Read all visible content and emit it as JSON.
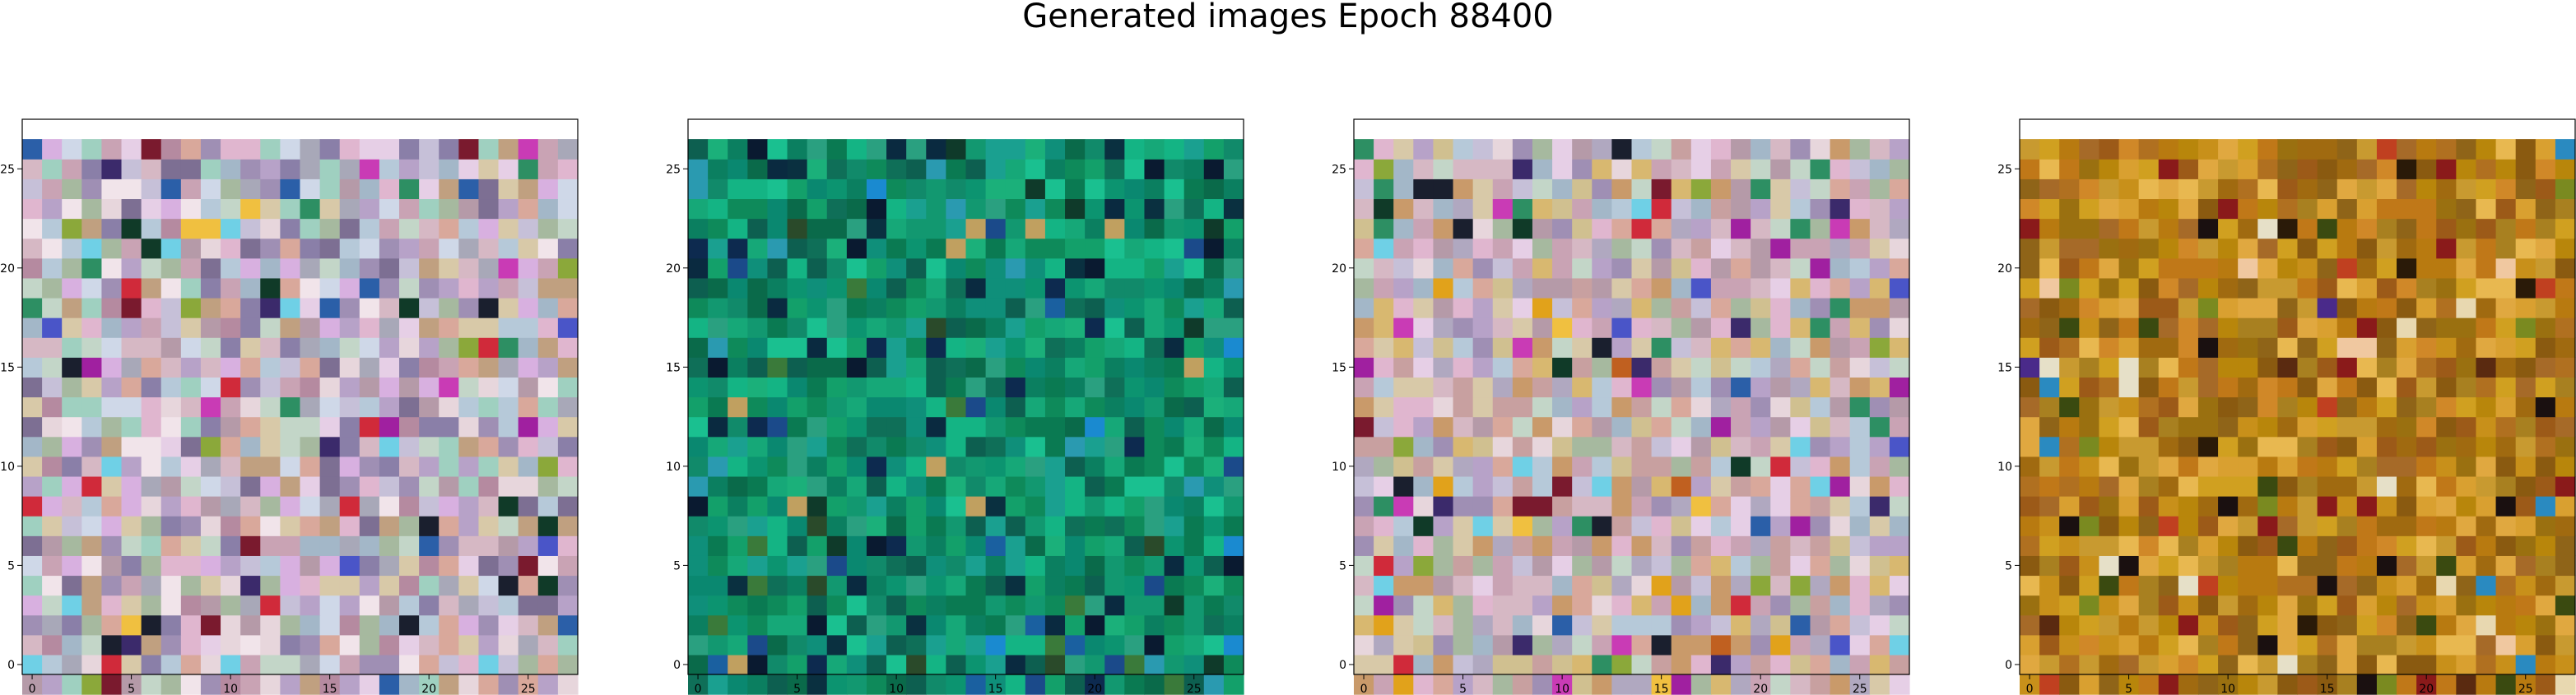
{
  "figure": {
    "title": "Generated images Epoch 88400"
  },
  "chart_data": [
    {
      "type": "heatmap",
      "title": "",
      "xlabel": "",
      "ylabel": "",
      "grid_size": [
        28,
        28
      ],
      "xlim": [
        -0.5,
        27.5
      ],
      "ylim": [
        27.5,
        -0.5
      ],
      "x_ticks": [
        0,
        5,
        10,
        15,
        20,
        25
      ],
      "y_ticks": [
        0,
        5,
        10,
        15,
        20,
        25
      ],
      "grid": false,
      "palette_description": "mixed pastel pink, lavender, beige, grey with scattered saturated pixels",
      "palette": [
        "#c9a3b4",
        "#b7a2c8",
        "#d6b8c4",
        "#e7d6dc",
        "#a3b7c8",
        "#c6c0d8",
        "#b59aa8",
        "#d8c9a8",
        "#c3d6c8",
        "#9f8fb4",
        "#e0b6cf",
        "#f1e4ea",
        "#8a7fa8",
        "#b6c9d9",
        "#d9a89b",
        "#a6b99f",
        "#cfd8e8",
        "#b58aa0",
        "#e6cfe6",
        "#7d6f93",
        "#9fd0c0",
        "#d8b0e0",
        "#c0a080",
        "#a8a8b8"
      ],
      "accent_palette": [
        "#1a1f2e",
        "#3b2a6b",
        "#7a1a2e",
        "#2b5fa8",
        "#e1a21b",
        "#c93bb5",
        "#2d8f63",
        "#d02a3a",
        "#4a55c8",
        "#6fd0e6",
        "#8ba83a",
        "#f0c040",
        "#a020a0",
        "#103a28"
      ],
      "accent_ratio": 0.11,
      "seed": 11
    },
    {
      "type": "heatmap",
      "title": "",
      "xlabel": "",
      "ylabel": "",
      "grid_size": [
        28,
        28
      ],
      "xlim": [
        -0.5,
        27.5
      ],
      "ylim": [
        27.5,
        -0.5
      ],
      "x_ticks": [
        0,
        5,
        10,
        15,
        20,
        25
      ],
      "y_ticks": [
        0,
        5,
        10,
        15,
        20,
        25
      ],
      "grid": false,
      "palette_description": "mostly green and teal with dark navy pixels",
      "palette": [
        "#0e8a5a",
        "#13a06a",
        "#0a7a52",
        "#1bb07a",
        "#0c9470",
        "#14b484",
        "#0f6f58",
        "#118a6a",
        "#0a6a4a",
        "#1aa090",
        "#0f8f7a",
        "#129870",
        "#0b7f60",
        "#16a878",
        "#0a8870",
        "#2aa080",
        "#0d5f50",
        "#1ac090"
      ],
      "accent_palette": [
        "#0a1a30",
        "#0a2a40",
        "#0f3a2a",
        "#1a60a0",
        "#1a8ad0",
        "#2a9ab0",
        "#0d2a4f",
        "#3a7a3a",
        "#c0a060",
        "#0a3040",
        "#1b4a8a",
        "#2a4a2a"
      ],
      "accent_ratio": 0.16,
      "seed": 23
    },
    {
      "type": "heatmap",
      "title": "",
      "xlabel": "",
      "ylabel": "",
      "grid_size": [
        28,
        28
      ],
      "xlim": [
        -0.5,
        27.5
      ],
      "ylim": [
        27.5,
        -0.5
      ],
      "x_ticks": [
        0,
        5,
        10,
        15,
        20,
        25
      ],
      "y_ticks": [
        0,
        5,
        10,
        15,
        20,
        25
      ],
      "grid": false,
      "palette_description": "mixed pastel pink, beige, lavender with warm accents toward right",
      "palette": [
        "#c9a3b4",
        "#b7a2c8",
        "#d6b8c4",
        "#e7d6dc",
        "#a3b7c8",
        "#c6c0d8",
        "#b59aa8",
        "#d8c9a8",
        "#c3d6c8",
        "#9f8fb4",
        "#e0b6cf",
        "#d8b870",
        "#c99a6a",
        "#b6c9d9",
        "#d9a89b",
        "#a6b99f",
        "#e6cfe6",
        "#c8a0a0",
        "#d0c090",
        "#b0a8c0"
      ],
      "accent_palette": [
        "#1a1f2e",
        "#3b2a6b",
        "#7a1a2e",
        "#2b5fa8",
        "#e1a21b",
        "#c93bb5",
        "#2d8f63",
        "#d02a3a",
        "#4a55c8",
        "#6fd0e6",
        "#8ba83a",
        "#f0c040",
        "#a020a0",
        "#103a28",
        "#c06020"
      ],
      "accent_ratio": 0.13,
      "seed": 37
    },
    {
      "type": "heatmap",
      "title": "",
      "xlabel": "",
      "ylabel": "",
      "grid_size": [
        28,
        28
      ],
      "xlim": [
        -0.5,
        27.5
      ],
      "ylim": [
        27.5,
        -0.5
      ],
      "x_ticks": [
        0,
        5,
        10,
        15,
        20,
        25
      ],
      "y_ticks": [
        0,
        5,
        10,
        15,
        20,
        25
      ],
      "grid": false,
      "palette_description": "warm ochre, orange and brown with dark brown pixels",
      "palette": [
        "#b8860b",
        "#c8901a",
        "#a06a10",
        "#d9a030",
        "#8a5a10",
        "#c07818",
        "#9a7010",
        "#e0a840",
        "#b07020",
        "#a88020",
        "#d08828",
        "#8f6418",
        "#c89a30",
        "#b87a10",
        "#e8b850",
        "#9c5a18",
        "#d0a020",
        "#a66a28"
      ],
      "accent_palette": [
        "#2a1a08",
        "#5a2a10",
        "#8a1a1a",
        "#3a4a10",
        "#e8d8b0",
        "#f0c8a0",
        "#1a1010",
        "#c04020",
        "#7a8a20",
        "#e6e0c8",
        "#4a2a8a",
        "#2a8ac0"
      ],
      "accent_ratio": 0.12,
      "seed": 53
    }
  ]
}
